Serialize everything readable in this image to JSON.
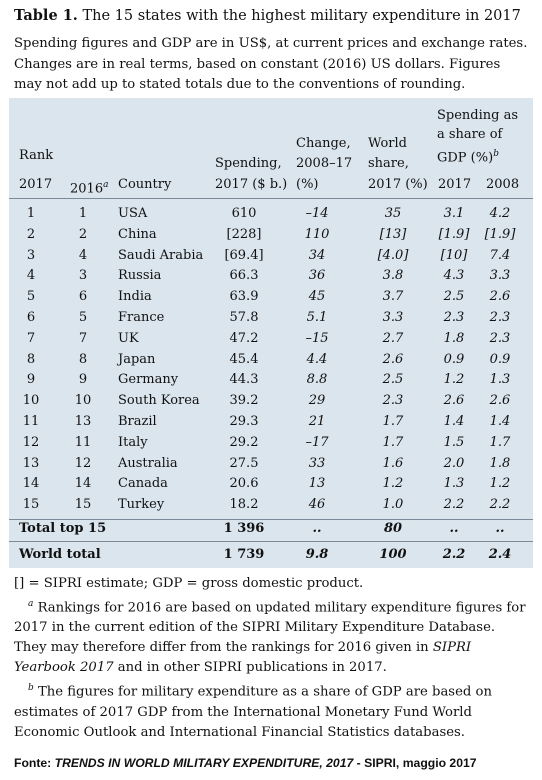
{
  "title": {
    "label": "Table 1.",
    "text": "The 15 states with the highest military expenditure in 2017"
  },
  "intro": "Spending figures and GDP are in US$, at current prices and exchange rates. Changes are in real terms, based on constant (2016) US dollars. Figures may not add up to stated totals due to the conventions of rounding.",
  "header": {
    "rank": "Rank",
    "rank_2017": "2017",
    "rank_2016": "2016",
    "rank_2016_note": "a",
    "country": "Country",
    "spending_1": "Spending,",
    "spending_2": "2017 ($ b.)",
    "change_1": "Change,",
    "change_2": "2008–17",
    "change_3": "(%)",
    "world_1": "World",
    "world_2": "share,",
    "world_3": "2017 (%)",
    "gdp_1": "Spending as",
    "gdp_2": "a share of",
    "gdp_3": "GDP (%)",
    "gdp_note": "b",
    "gdp_2017": "2017",
    "gdp_2008": "2008"
  },
  "rows": [
    {
      "r17": "1",
      "r16": "1",
      "country": "USA",
      "spend": "610",
      "chg": "–14",
      "ws": "35",
      "g17": "3.1",
      "g08": "4.2"
    },
    {
      "r17": "2",
      "r16": "2",
      "country": "China",
      "spend": "[228]",
      "chg": "110",
      "ws": "[13]",
      "g17": "[1.9]",
      "g08": "[1.9]"
    },
    {
      "r17": "3",
      "r16": "4",
      "country": "Saudi Arabia",
      "spend": "[69.4]",
      "chg": "34",
      "ws": "[4.0]",
      "g17": "[10]",
      "g08": "7.4"
    },
    {
      "r17": "4",
      "r16": "3",
      "country": "Russia",
      "spend": "66.3",
      "chg": "36",
      "ws": "3.8",
      "g17": "4.3",
      "g08": "3.3"
    },
    {
      "r17": "5",
      "r16": "6",
      "country": "India",
      "spend": "63.9",
      "chg": "45",
      "ws": "3.7",
      "g17": "2.5",
      "g08": "2.6"
    },
    {
      "r17": "6",
      "r16": "5",
      "country": "France",
      "spend": "57.8",
      "chg": "5.1",
      "ws": "3.3",
      "g17": "2.3",
      "g08": "2.3"
    },
    {
      "r17": "7",
      "r16": "7",
      "country": "UK",
      "spend": "47.2",
      "chg": "–15",
      "ws": "2.7",
      "g17": "1.8",
      "g08": "2.3"
    },
    {
      "r17": "8",
      "r16": "8",
      "country": "Japan",
      "spend": "45.4",
      "chg": "4.4",
      "ws": "2.6",
      "g17": "0.9",
      "g08": "0.9"
    },
    {
      "r17": "9",
      "r16": "9",
      "country": "Germany",
      "spend": "44.3",
      "chg": "8.8",
      "ws": "2.5",
      "g17": "1.2",
      "g08": "1.3"
    },
    {
      "r17": "10",
      "r16": "10",
      "country": "South Korea",
      "spend": "39.2",
      "chg": "29",
      "ws": "2.3",
      "g17": "2.6",
      "g08": "2.6"
    },
    {
      "r17": "11",
      "r16": "13",
      "country": "Brazil",
      "spend": "29.3",
      "chg": "21",
      "ws": "1.7",
      "g17": "1.4",
      "g08": "1.4"
    },
    {
      "r17": "12",
      "r16": "11",
      "country": "Italy",
      "spend": "29.2",
      "chg": "–17",
      "ws": "1.7",
      "g17": "1.5",
      "g08": "1.7"
    },
    {
      "r17": "13",
      "r16": "12",
      "country": "Australia",
      "spend": "27.5",
      "chg": "33",
      "ws": "1.6",
      "g17": "2.0",
      "g08": "1.8"
    },
    {
      "r17": "14",
      "r16": "14",
      "country": "Canada",
      "spend": "20.6",
      "chg": "13",
      "ws": "1.2",
      "g17": "1.3",
      "g08": "1.2"
    },
    {
      "r17": "15",
      "r16": "15",
      "country": "Turkey",
      "spend": "18.2",
      "chg": "46",
      "ws": "1.0",
      "g17": "2.2",
      "g08": "2.2"
    }
  ],
  "total_top15": {
    "label": "Total top 15",
    "spend": "1 396",
    "chg": "..",
    "ws": "80",
    "g17": "..",
    "g08": ".."
  },
  "world_total": {
    "label": "World total",
    "spend": "1 739",
    "chg": "9.8",
    "ws": "100",
    "g17": "2.2",
    "g08": "2.4"
  },
  "notes": {
    "legend": "[] = SIPRI estimate; GDP = gross domestic product.",
    "note_a_mark": "a",
    "note_a_1": " Rankings for 2016 are based on updated military expenditure figures for 2017 in the current edition of the SIPRI Military Expenditure Database. They may therefore differ from the rankings for 2016 given in ",
    "note_a_italic": "SIPRI Yearbook 2017",
    "note_a_2": " and in other SIPRI publications in 2017.",
    "note_b_mark": "b",
    "note_b": " The figures for military expenditure as a share of GDP are based on estimates of 2017 GDP from the International Monetary Fund World Economic Outlook and International Financial Statistics databases."
  },
  "source": {
    "prefix": "Fonte: ",
    "title": "TRENDS IN WORLD MILITARY EXPENDITURE, 2017",
    "suffix": " - SIPRI, maggio 2017"
  }
}
